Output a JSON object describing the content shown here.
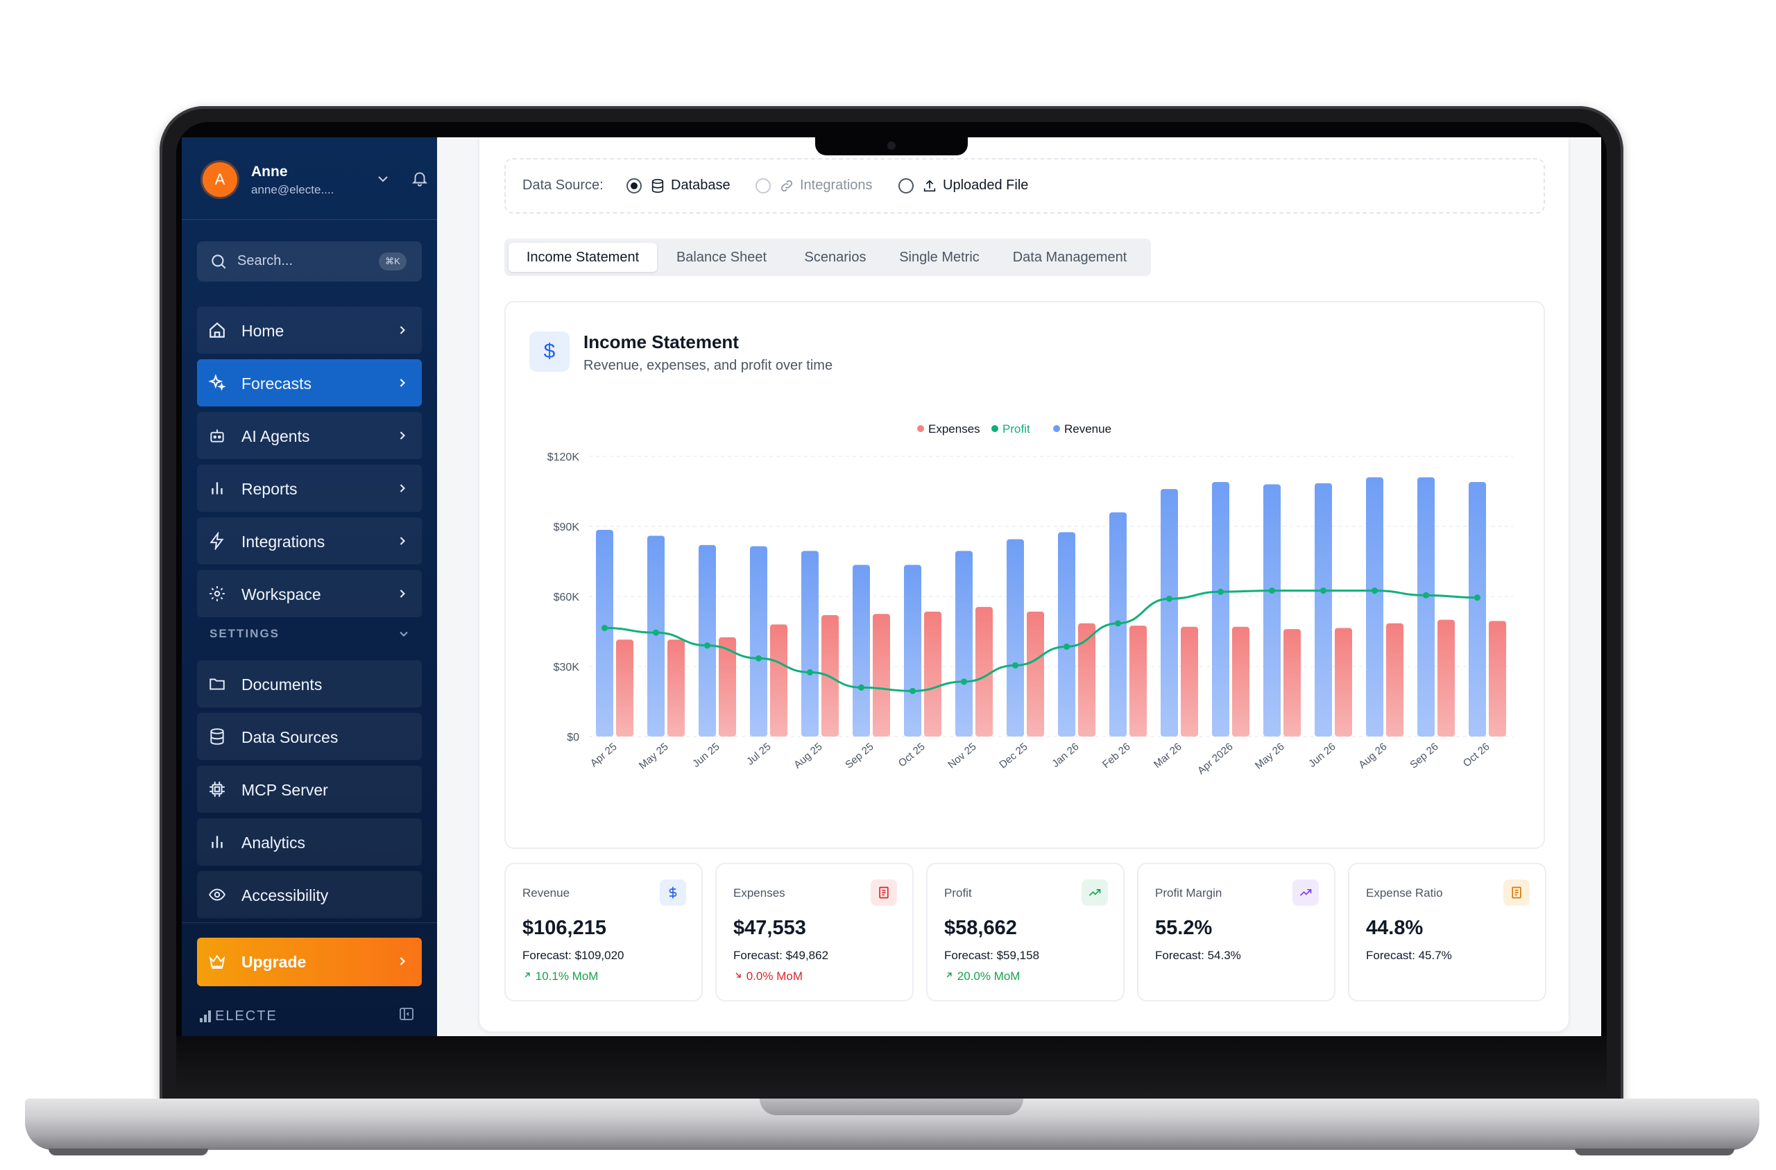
{
  "user": {
    "initial": "A",
    "name": "Anne",
    "email": "anne@electe...."
  },
  "search": {
    "placeholder": "Search...",
    "shortcut": "⌘K"
  },
  "nav": [
    {
      "label": "Home",
      "icon": "home-icon",
      "active": false
    },
    {
      "label": "Forecasts",
      "icon": "sparkles-icon",
      "active": true
    },
    {
      "label": "AI Agents",
      "icon": "bot-icon",
      "active": false
    },
    {
      "label": "Reports",
      "icon": "bar-chart-icon",
      "active": false
    },
    {
      "label": "Integrations",
      "icon": "lightning-icon",
      "active": false
    },
    {
      "label": "Workspace",
      "icon": "gear-icon",
      "active": false
    }
  ],
  "settings": {
    "heading": "SETTINGS",
    "items": [
      {
        "label": "Documents",
        "icon": "folder-icon"
      },
      {
        "label": "Data Sources",
        "icon": "database-icon"
      },
      {
        "label": "MCP Server",
        "icon": "chip-icon"
      },
      {
        "label": "Analytics",
        "icon": "bar-chart-icon"
      },
      {
        "label": "Accessibility",
        "icon": "eye-icon"
      }
    ]
  },
  "upgrade": {
    "label": "Upgrade",
    "icon": "crown-icon"
  },
  "brand": {
    "name": "ELECTE"
  },
  "data_source": {
    "label": "Data Source:",
    "options": [
      {
        "label": "Database",
        "icon": "database-icon",
        "selected": true,
        "enabled": true
      },
      {
        "label": "Integrations",
        "icon": "link-icon",
        "selected": false,
        "enabled": false
      },
      {
        "label": "Uploaded File",
        "icon": "upload-icon",
        "selected": false,
        "enabled": true
      }
    ]
  },
  "tabs": [
    {
      "label": "Income Statement",
      "active": true
    },
    {
      "label": "Balance Sheet",
      "active": false
    },
    {
      "label": "Scenarios",
      "active": false
    },
    {
      "label": "Single Metric",
      "active": false
    },
    {
      "label": "Data Management",
      "active": false
    }
  ],
  "income_card": {
    "icon": "dollar-icon",
    "icon_text": "$",
    "title": "Income Statement",
    "subtitle": "Revenue, expenses, and profit over time"
  },
  "chart_data": {
    "type": "bar",
    "categories": [
      "Apr 25",
      "May 25",
      "Jun 25",
      "Jul 25",
      "Aug 25",
      "Sep 25",
      "Oct 25",
      "Nov 25",
      "Dec 25",
      "Jan 26",
      "Feb 26",
      "Mar 26",
      "Apr 2026",
      "May 26",
      "Jun 26",
      "Aug 26",
      "Sep 26",
      "Oct 26"
    ],
    "series": [
      {
        "name": "Revenue",
        "type": "bar",
        "color": "#6b9cf5",
        "values": [
          88500,
          86000,
          82000,
          81500,
          79500,
          73500,
          73500,
          79500,
          84500,
          87500,
          96000,
          106000,
          109000,
          108000,
          108500,
          111000,
          111000,
          109000
        ]
      },
      {
        "name": "Expenses",
        "type": "bar",
        "color": "#f48484",
        "values": [
          41500,
          41500,
          42500,
          48000,
          52000,
          52500,
          53500,
          55500,
          53500,
          48500,
          47500,
          47000,
          47000,
          46000,
          46500,
          48500,
          50000,
          49500
        ]
      },
      {
        "name": "Profit",
        "type": "line",
        "color": "#10b07a",
        "values": [
          46500,
          44500,
          39000,
          33500,
          27500,
          21000,
          19500,
          23500,
          30500,
          38500,
          48500,
          59000,
          62000,
          62500,
          62500,
          62500,
          60500,
          59500
        ]
      }
    ],
    "legend": [
      "Expenses",
      "Profit",
      "Revenue"
    ],
    "legend_position": "top-center",
    "y_ticks": [
      "$0",
      "$30K",
      "$60K",
      "$90K",
      "$120K"
    ],
    "ylim": [
      0,
      120000
    ],
    "grid": true
  },
  "kpis": [
    {
      "label": "Revenue",
      "icon": "dollar-icon",
      "value": "$106,215",
      "forecast_label": "Forecast:",
      "forecast": "$109,020",
      "mom": "10.1% MoM",
      "mom_dir": "up",
      "accent": "#2563eb",
      "accent_bg": "#e8f0fd"
    },
    {
      "label": "Expenses",
      "icon": "receipt-icon",
      "value": "$47,553",
      "forecast_label": "Forecast:",
      "forecast": "$49,862",
      "mom": "0.0% MoM",
      "mom_dir": "down",
      "accent": "#dc2626",
      "accent_bg": "#fde8e8"
    },
    {
      "label": "Profit",
      "icon": "trending-up-icon",
      "value": "$58,662",
      "forecast_label": "Forecast:",
      "forecast": "$59,158",
      "mom": "20.0% MoM",
      "mom_dir": "up",
      "accent": "#16a34a",
      "accent_bg": "#e6f6ee"
    },
    {
      "label": "Profit Margin",
      "icon": "trending-up-icon",
      "value": "55.2%",
      "forecast_label": "Forecast:",
      "forecast": "54.3%",
      "mom": "",
      "mom_dir": "",
      "accent": "#7c3aed",
      "accent_bg": "#f1eafd"
    },
    {
      "label": "Expense Ratio",
      "icon": "receipt-icon",
      "value": "44.8%",
      "forecast_label": "Forecast:",
      "forecast": "45.7%",
      "mom": "",
      "mom_dir": "",
      "accent": "#d97706",
      "accent_bg": "#fdf1dc"
    }
  ],
  "colors": {
    "sidebar_bg": "#0b2a57",
    "active_nav": "#1565c8",
    "upgrade": "#f97316",
    "revenue": "#6b9cf5",
    "expenses": "#f48484",
    "profit": "#10b07a"
  }
}
